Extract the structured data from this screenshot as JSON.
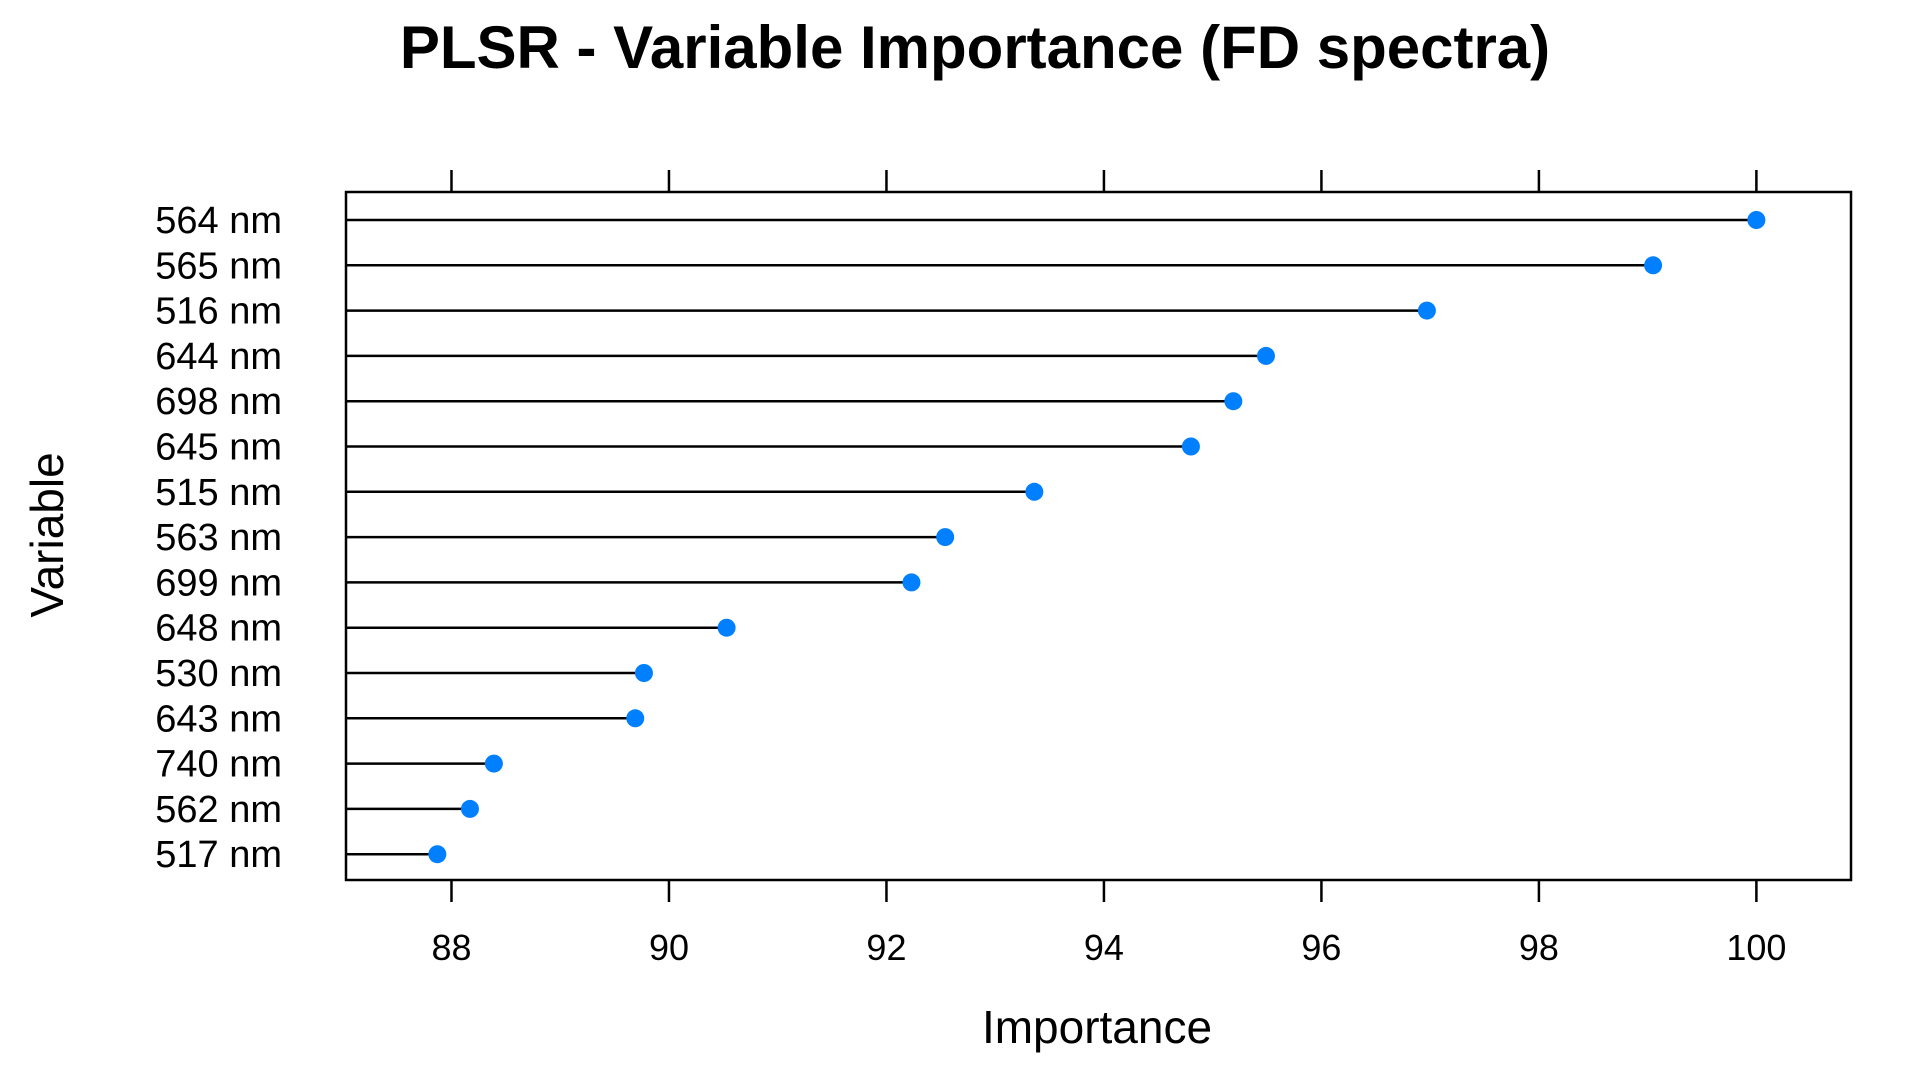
{
  "chart_data": {
    "type": "dot",
    "title": "PLSR - Variable Importance (FD spectra)",
    "xlabel": "Importance",
    "ylabel": "Variable",
    "xlim": [
      87.03,
      100.87
    ],
    "x_ticks": [
      88,
      90,
      92,
      94,
      96,
      98,
      100
    ],
    "x_tick_labels": [
      "88",
      "90",
      "92",
      "94",
      "96",
      "98",
      "100"
    ],
    "x_ticks_top": true,
    "grid": false,
    "legend": "none",
    "baseline": "left-edge",
    "categories": [
      "564 nm",
      "565 nm",
      "516 nm",
      "644 nm",
      "698 nm",
      "645 nm",
      "515 nm",
      "563 nm",
      "699 nm",
      "648 nm",
      "530 nm",
      "643 nm",
      "740 nm",
      "562 nm",
      "517 nm"
    ],
    "values": [
      100.0,
      99.05,
      96.97,
      95.49,
      95.19,
      94.8,
      93.36,
      92.54,
      92.23,
      90.53,
      89.77,
      89.69,
      88.39,
      88.17,
      87.87
    ],
    "colors": {
      "point": "#0080ff",
      "line": "#000000",
      "frame": "#000000"
    }
  }
}
